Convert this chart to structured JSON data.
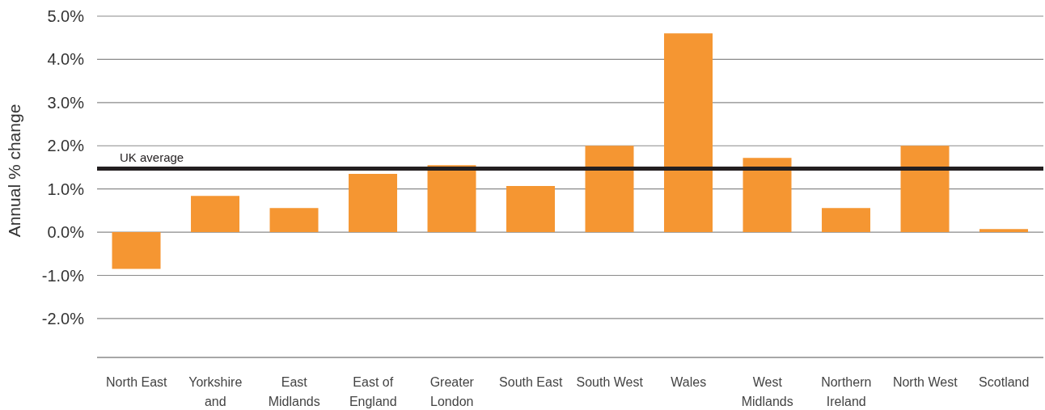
{
  "chart_data": {
    "type": "bar",
    "ylabel": "Annual % change",
    "categories": [
      "North East",
      "Yorkshire and",
      "East Midlands",
      "East of England",
      "Greater London",
      "South East",
      "South West",
      "Wales",
      "West Midlands",
      "Northern Ireland",
      "North West",
      "Scotland"
    ],
    "values": [
      -0.85,
      0.84,
      0.56,
      1.35,
      1.55,
      1.07,
      2.0,
      4.6,
      1.72,
      0.56,
      2.0,
      0.07
    ],
    "color": "#f59632",
    "ylim": [
      -2.9,
      5.0
    ],
    "yticks": [
      {
        "value": 5,
        "label": "5.0%"
      },
      {
        "value": 4,
        "label": "4.0%"
      },
      {
        "value": 3,
        "label": "3.0%"
      },
      {
        "value": 2,
        "label": "2.0%"
      },
      {
        "value": 1,
        "label": "1.0%"
      },
      {
        "value": 0,
        "label": "0.0%"
      },
      {
        "value": -1,
        "label": "-1.0%"
      },
      {
        "value": -2,
        "label": "-2.0%"
      }
    ],
    "grid": "y",
    "ref_lines": [
      {
        "axis": "y",
        "value": 1.47,
        "label": "UK average",
        "color": "#231f20"
      }
    ]
  }
}
